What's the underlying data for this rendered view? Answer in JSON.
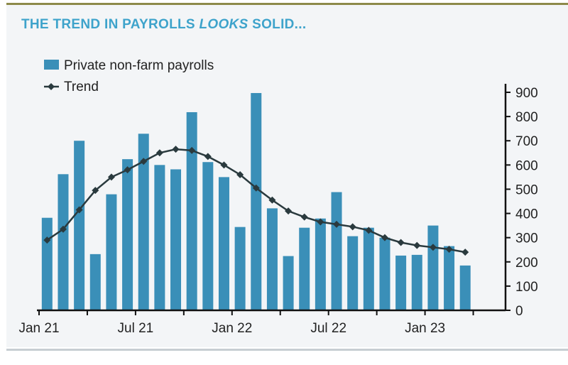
{
  "title_pre": "THE TREND IN PAYROLLS ",
  "title_em": "LOOKS",
  "title_post": " SOLID...",
  "colors": {
    "bar": "#3a8fb8",
    "trend": "#2a3a3e",
    "title": "#3ea3cb"
  },
  "chart_data": {
    "type": "bar",
    "title": "THE TREND IN PAYROLLS LOOKS SOLID...",
    "xlabel": "",
    "ylabel": "",
    "ylim": [
      0,
      900
    ],
    "yticks": [
      0,
      100,
      200,
      300,
      400,
      500,
      600,
      700,
      800,
      900
    ],
    "y_axis_side": "right",
    "xtick_labels": [
      "Jan 21",
      "Jul 21",
      "Jan 22",
      "Jul 22",
      "Jan 23"
    ],
    "categories": [
      "Jan 21",
      "Feb 21",
      "Mar 21",
      "Apr 21",
      "May 21",
      "Jun 21",
      "Jul 21",
      "Aug 21",
      "Sep 21",
      "Oct 21",
      "Nov 21",
      "Dec 21",
      "Jan 22",
      "Feb 22",
      "Mar 22",
      "Apr 22",
      "May 22",
      "Jun 22",
      "Jul 22",
      "Aug 22",
      "Sep 22",
      "Oct 22",
      "Nov 22",
      "Dec 22",
      "Jan 23",
      "Feb 23",
      "Mar 23"
    ],
    "legend_position": "top-left",
    "series": [
      {
        "name": "Private non-farm payrolls",
        "type": "bar",
        "values": [
          382,
          562,
          700,
          232,
          479,
          624,
          729,
          600,
          582,
          818,
          612,
          550,
          344,
          897,
          421,
          224,
          341,
          379,
          488,
          306,
          341,
          300,
          226,
          229,
          350,
          265,
          185
        ]
      },
      {
        "name": "Trend",
        "type": "line",
        "values": [
          290,
          335,
          415,
          495,
          550,
          580,
          615,
          650,
          665,
          660,
          635,
          600,
          560,
          505,
          455,
          410,
          385,
          365,
          355,
          345,
          330,
          300,
          280,
          268,
          260,
          252,
          240
        ]
      }
    ]
  }
}
